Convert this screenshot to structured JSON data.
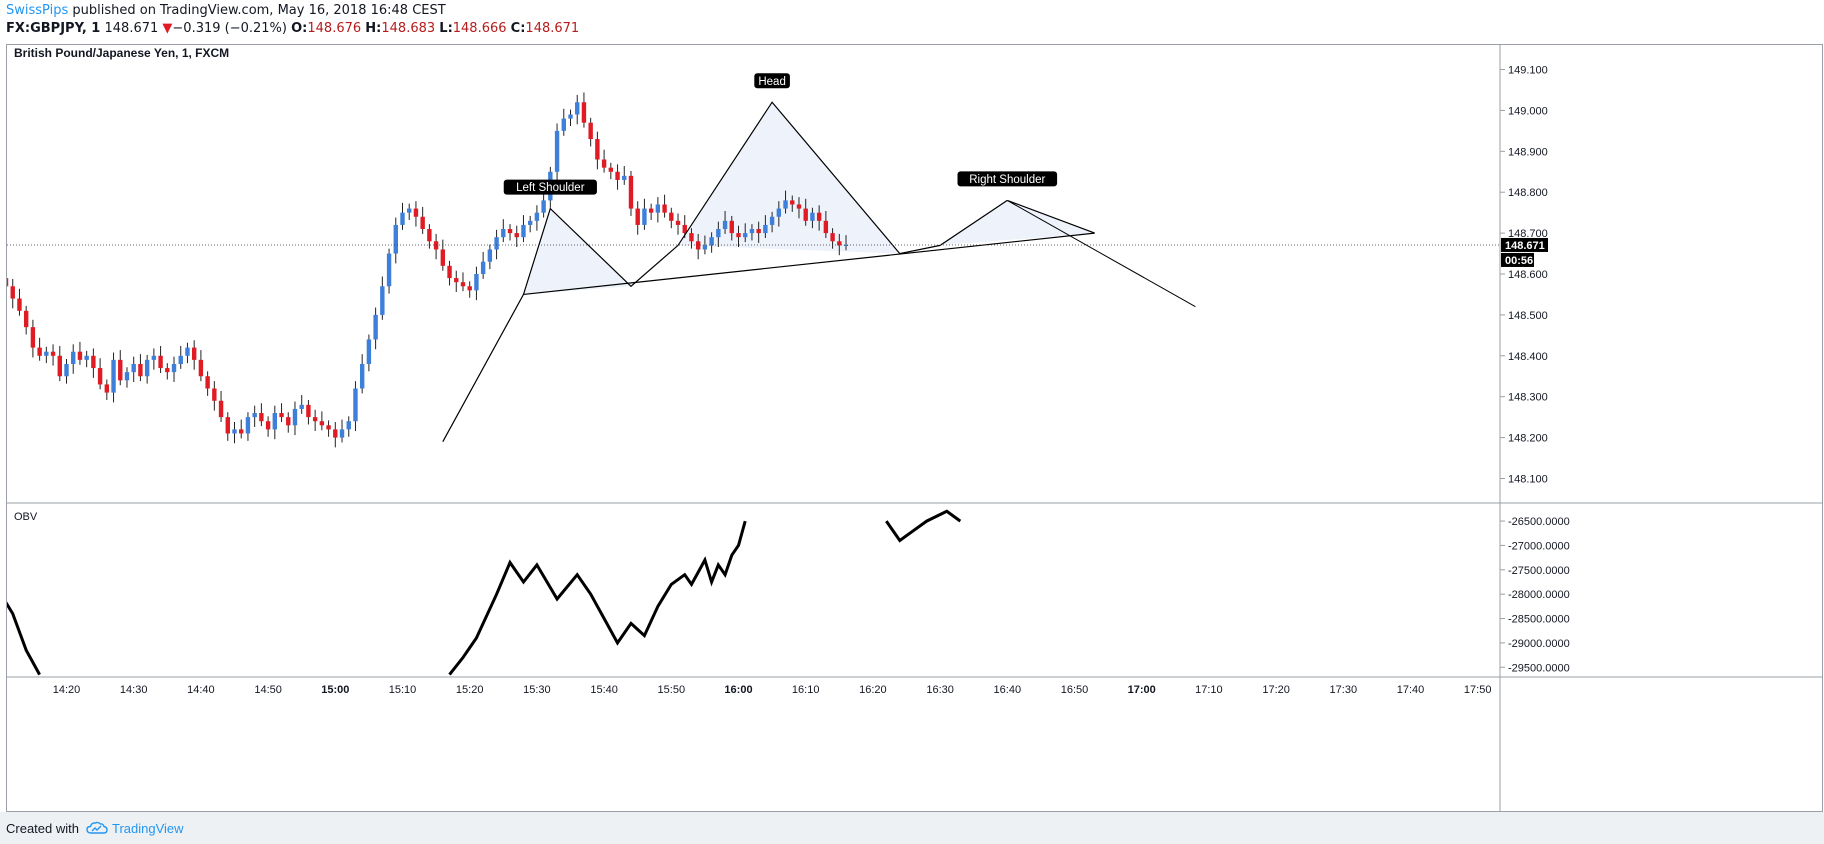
{
  "header": {
    "author": "SwissPips",
    "published": "published on TradingView.com, May 16, 2018 16:48 CEST",
    "symbol": "FX:GBPJPY, 1",
    "last": "148.671",
    "down_glyph": "▼",
    "change": "−0.319 (−0.21%)",
    "o_label": "O:",
    "o": "148.676",
    "h_label": "H:",
    "h": "148.683",
    "l_label": "L:",
    "l": "148.666",
    "c_label": "C:",
    "c": "148.671"
  },
  "footer": {
    "created": "Created with",
    "brand": "TradingView",
    "icon": "tradingview-cloud-icon"
  },
  "colors": {
    "up": "#3d7fd9",
    "down": "#e01b24",
    "pattern_fill": "#eef3fb",
    "obv_line": "#000000"
  },
  "chart_data": [
    {
      "type": "candlestick",
      "title": "British Pound/Japanese Yen, 1, FXCM",
      "x_ticks": [
        "14:20",
        "14:30",
        "14:40",
        "14:50",
        "15:00",
        "15:10",
        "15:20",
        "15:30",
        "15:40",
        "15:50",
        "16:00",
        "16:10",
        "16:20",
        "16:30",
        "16:40",
        "16:50",
        "17:00",
        "17:10",
        "17:20",
        "17:30",
        "17:40",
        "17:50"
      ],
      "bold_x_ticks": [
        "15:00",
        "16:00",
        "17:00"
      ],
      "y_ticks": [
        "149.100",
        "149.000",
        "148.900",
        "148.800",
        "148.700",
        "148.600",
        "148.500",
        "148.400",
        "148.300",
        "148.200",
        "148.100"
      ],
      "ylim": [
        148.04,
        149.16
      ],
      "last_price": {
        "value": 148.671,
        "label": "148.671",
        "countdown": "00:56"
      },
      "candle_minutes_from_1410": 1,
      "closes": [
        148.57,
        148.54,
        148.51,
        148.47,
        148.42,
        148.4,
        148.41,
        148.4,
        148.35,
        148.38,
        148.41,
        148.39,
        148.4,
        148.37,
        148.33,
        148.31,
        148.39,
        148.34,
        148.36,
        148.38,
        148.35,
        148.39,
        148.4,
        148.37,
        148.36,
        148.38,
        148.4,
        148.42,
        148.39,
        148.35,
        148.32,
        148.29,
        148.25,
        148.21,
        148.22,
        148.21,
        148.25,
        148.26,
        148.24,
        148.22,
        148.26,
        148.25,
        148.23,
        148.27,
        148.28,
        148.25,
        148.24,
        148.23,
        148.22,
        148.2,
        148.22,
        148.24,
        148.32,
        148.38,
        148.44,
        148.5,
        148.57,
        148.65,
        148.72,
        148.75,
        148.76,
        148.74,
        148.71,
        148.68,
        148.66,
        148.62,
        148.59,
        148.58,
        148.57,
        148.56,
        148.6,
        148.63,
        148.66,
        148.69,
        148.71,
        148.7,
        148.69,
        148.72,
        148.73,
        148.75,
        148.78,
        148.85,
        148.95,
        148.98,
        148.99,
        149.02,
        148.97,
        148.93,
        148.88,
        148.86,
        148.85,
        148.83,
        148.84,
        148.76,
        148.72,
        148.76,
        148.75,
        148.77,
        148.75,
        148.73,
        148.72,
        148.7,
        148.68,
        148.66,
        148.67,
        148.69,
        148.71,
        148.73,
        148.7,
        148.69,
        148.7,
        148.71,
        148.7,
        148.72,
        148.74,
        148.76,
        148.78,
        148.77,
        148.76,
        148.73,
        148.75,
        148.73,
        148.7,
        148.68,
        148.67,
        148.671
      ],
      "patterns": [
        {
          "name": "Left Shoulder",
          "time": "15:32",
          "price": 148.76
        },
        {
          "name": "Head",
          "time": "16:05",
          "price": 149.02
        },
        {
          "name": "Right Shoulder",
          "time": "16:40",
          "price": 148.78
        }
      ],
      "pattern_points": [
        [
          "15:16",
          148.19
        ],
        [
          "15:28",
          148.55
        ],
        [
          "15:32",
          148.76
        ],
        [
          "15:44",
          148.57
        ],
        [
          "15:51",
          148.67
        ],
        [
          "16:05",
          149.02
        ],
        [
          "16:24",
          148.65
        ],
        [
          "16:30",
          148.67
        ],
        [
          "16:40",
          148.78
        ],
        [
          "16:53",
          148.7
        ]
      ],
      "neckline": [
        [
          "15:28",
          148.55
        ],
        [
          "16:53",
          148.7
        ]
      ],
      "projection_line": [
        [
          "16:40",
          148.78
        ],
        [
          "17:08",
          148.52
        ]
      ]
    },
    {
      "type": "line",
      "title": "OBV",
      "y_ticks": [
        "-26500.0000",
        "-27000.0000",
        "-27500.0000",
        "-28000.0000",
        "-28500.0000",
        "-29000.0000",
        "-29500.0000"
      ],
      "ylim": [
        -29700,
        -26150
      ],
      "series": [
        {
          "name": "OBV",
          "x": [
            "14:10",
            "14:12",
            "14:14",
            "14:16",
            "15:17",
            "15:19",
            "15:21",
            "15:24",
            "15:26",
            "15:28",
            "15:30",
            "15:33",
            "15:36",
            "15:38",
            "15:40",
            "15:42",
            "15:44",
            "15:46",
            "15:48",
            "15:50",
            "15:52",
            "15:53",
            "15:55",
            "15:56",
            "15:57",
            "15:58",
            "15:59",
            "16:00",
            "16:01",
            "16:22",
            "16:24",
            "16:26",
            "16:28",
            "16:31",
            "16:33"
          ],
          "values": [
            -27950,
            -28400,
            -29150,
            -29650,
            -29650,
            -29300,
            -28900,
            -28000,
            -27350,
            -27750,
            -27400,
            -28100,
            -27600,
            -28000,
            -28500,
            -29000,
            -28600,
            -28850,
            -28250,
            -27800,
            -27600,
            -27800,
            -27300,
            -27750,
            -27400,
            -27600,
            -27200,
            -27000,
            -26500,
            -26500,
            -26900,
            -26700,
            -26500,
            -26300,
            -26500
          ]
        }
      ]
    }
  ]
}
